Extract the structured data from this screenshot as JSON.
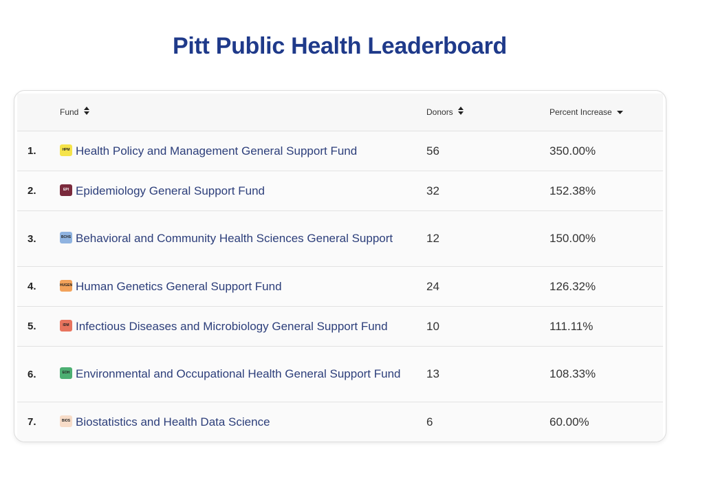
{
  "title": "Pitt Public Health Leaderboard",
  "columns": {
    "fund": "Fund",
    "donors": "Donors",
    "percent": "Percent Increase"
  },
  "rows": [
    {
      "rank": "1.",
      "badge": "HPM",
      "badge_color": "#f5e34a",
      "fund": "Health Policy and Management General Support Fund",
      "donors": "56",
      "percent": "350.00%"
    },
    {
      "rank": "2.",
      "badge": "EPI",
      "badge_color": "#7a2a3c",
      "fund": "Epidemiology General Support Fund",
      "donors": "32",
      "percent": "152.38%"
    },
    {
      "rank": "3.",
      "badge": "BCHS",
      "badge_color": "#8fb3e0",
      "fund": "Behavioral and Community Health Sciences General Support",
      "donors": "12",
      "percent": "150.00%"
    },
    {
      "rank": "4.",
      "badge": "HUGEN",
      "badge_color": "#f2a25a",
      "fund": "Human Genetics General Support Fund",
      "donors": "24",
      "percent": "126.32%"
    },
    {
      "rank": "5.",
      "badge": "IDM",
      "badge_color": "#e8745e",
      "fund": "Infectious Diseases and Microbiology General Support Fund",
      "donors": "10",
      "percent": "111.11%"
    },
    {
      "rank": "6.",
      "badge": "EOH",
      "badge_color": "#4caf72",
      "fund": "Environmental and Occupational Health General Support Fund",
      "donors": "13",
      "percent": "108.33%"
    },
    {
      "rank": "7.",
      "badge": "BIOS",
      "badge_color": "#f7dcc8",
      "fund": "Biostatistics and Health Data Science",
      "donors": "6",
      "percent": "60.00%"
    }
  ]
}
